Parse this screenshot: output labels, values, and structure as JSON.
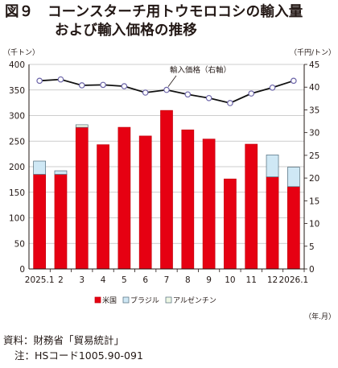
{
  "title": {
    "line1": "図９　コーンスターチ用トウモロコシの輸入量",
    "line2": "および輸入価格の推移"
  },
  "notes": {
    "source": "資料：財務省「貿易統計」",
    "note": "注：HSコード1005.90-091"
  },
  "chart_data": {
    "type": "bar",
    "categories": [
      "2025.1",
      "2",
      "3",
      "4",
      "5",
      "6",
      "7",
      "8",
      "9",
      "10",
      "11",
      "12",
      "2026.1"
    ],
    "series": [
      {
        "name": "米国",
        "color": "#e60012",
        "values": [
          185,
          185,
          277,
          243,
          277,
          260,
          310,
          272,
          254,
          176,
          244,
          180,
          161
        ]
      },
      {
        "name": "ブラジル",
        "color": "#cfe8f5",
        "values": [
          26,
          7,
          0,
          0,
          0,
          0,
          0,
          0,
          0,
          0,
          0,
          43,
          38
        ]
      },
      {
        "name": "アルゼンチン",
        "color": "#eef7e4",
        "values": [
          0,
          0,
          5,
          0,
          0,
          0,
          0,
          0,
          0,
          0,
          0,
          0,
          0
        ]
      }
    ],
    "line": {
      "name": "輸入価格（右軸）",
      "values": [
        41.4,
        41.7,
        40.4,
        40.5,
        40.2,
        38.8,
        39.4,
        38.4,
        37.6,
        36.5,
        38.6,
        39.9,
        41.4
      ]
    },
    "y_left": {
      "unit": "（千トン）",
      "min": 0,
      "max": 400,
      "step": 50,
      "ticks": [
        "0",
        "50",
        "100",
        "150",
        "200",
        "250",
        "300",
        "350",
        "400"
      ]
    },
    "y_right": {
      "unit": "（千円/トン）",
      "min": 0,
      "max": 45,
      "step": 5,
      "ticks": [
        "0",
        "5",
        "10",
        "15",
        "20",
        "25",
        "30",
        "35",
        "40",
        "45"
      ]
    },
    "x_unit": "（年.月）",
    "legend_position": "bottom",
    "grid": true
  }
}
